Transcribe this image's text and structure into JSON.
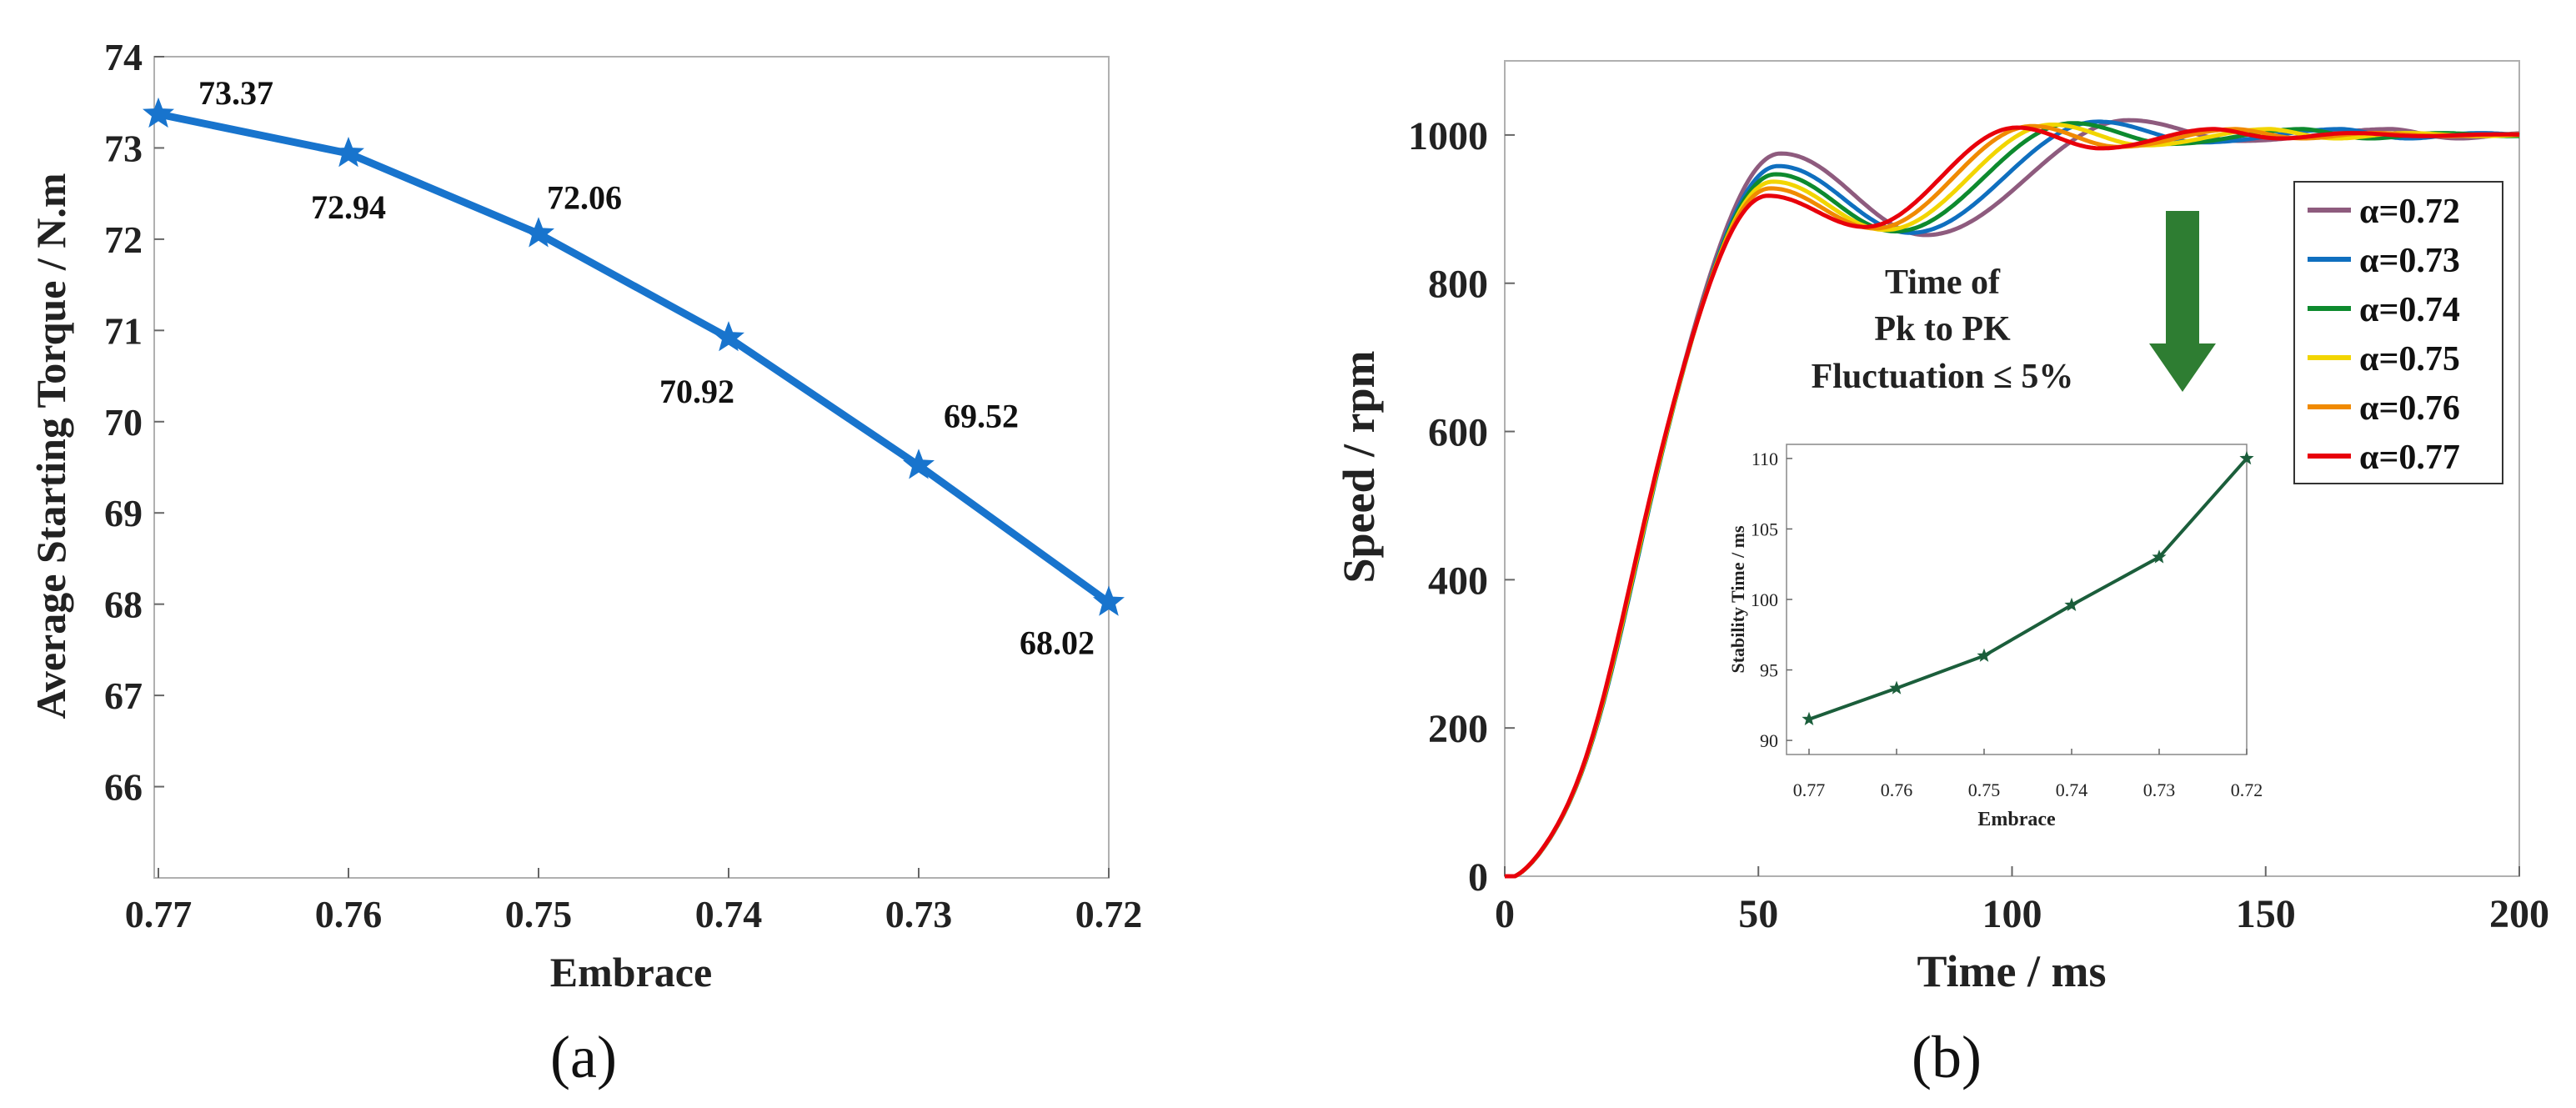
{
  "chart_data": [
    {
      "id": "a",
      "type": "line",
      "panel_label": "(a)",
      "title": "",
      "xlabel": "Embrace",
      "ylabel": "Average Starting Torque / N.m",
      "categories": [
        "0.77",
        "0.76",
        "0.75",
        "0.74",
        "0.73",
        "0.72"
      ],
      "values": [
        73.37,
        72.94,
        72.06,
        70.92,
        69.52,
        68.02
      ],
      "data_labels": [
        "73.37",
        "72.94",
        "72.06",
        "70.92",
        "69.52",
        "68.02"
      ],
      "ylim": [
        65,
        74
      ],
      "yticks": [
        66,
        67,
        68,
        69,
        70,
        71,
        72,
        73,
        74
      ],
      "color": "#1874CD",
      "marker": "star"
    },
    {
      "id": "b",
      "type": "line",
      "panel_label": "(b)",
      "title": "",
      "xlabel": "Time / ms",
      "ylabel": "Speed / rpm",
      "xlim": [
        0,
        200
      ],
      "ylim": [
        0,
        1100
      ],
      "xticks": [
        0,
        50,
        100,
        150,
        200
      ],
      "yticks": [
        0,
        200,
        400,
        600,
        800,
        1000
      ],
      "legend_position": "top-right",
      "series": [
        {
          "name": "α=0.72",
          "color": "#8E5B7E",
          "peak_time": 54.5,
          "peak": 975,
          "valley_time": 83,
          "valley": 865,
          "peak2_time": 123,
          "peak2": 1020
        },
        {
          "name": "α=0.73",
          "color": "#0F6FBF",
          "peak_time": 54.0,
          "peak": 958,
          "valley_time": 80,
          "valley": 868,
          "peak2_time": 117,
          "peak2": 1018
        },
        {
          "name": "α=0.74",
          "color": "#0D8A2E",
          "peak_time": 53.5,
          "peak": 947,
          "valley_time": 77,
          "valley": 870,
          "peak2_time": 112,
          "peak2": 1016
        },
        {
          "name": "α=0.75",
          "color": "#F2D500",
          "peak_time": 53.0,
          "peak": 937,
          "valley_time": 75,
          "valley": 872,
          "peak2_time": 108,
          "peak2": 1014
        },
        {
          "name": "α=0.76",
          "color": "#F08A00",
          "peak_time": 52.5,
          "peak": 928,
          "valley_time": 73,
          "valley": 874,
          "peak2_time": 104,
          "peak2": 1012
        },
        {
          "name": "α=0.77",
          "color": "#E8000B",
          "peak_time": 52.0,
          "peak": 918,
          "valley_time": 71,
          "valley": 876,
          "peak2_time": 101,
          "peak2": 1010
        }
      ],
      "annotation": [
        "Time of",
        "Pk to PK",
        "Fluctuation ≤ 5%"
      ],
      "arrow_color": "#2E7D32",
      "inset": {
        "type": "line",
        "xlabel": "Embrace",
        "ylabel": "Stability Time / ms",
        "categories": [
          "0.77",
          "0.76",
          "0.75",
          "0.74",
          "0.73",
          "0.72"
        ],
        "values": [
          91.5,
          93.7,
          96.0,
          99.6,
          103.0,
          110.0
        ],
        "ylim": [
          89,
          111
        ],
        "yticks": [
          90,
          95,
          100,
          105,
          110
        ],
        "color": "#1B5E3B",
        "marker": "star"
      }
    }
  ]
}
